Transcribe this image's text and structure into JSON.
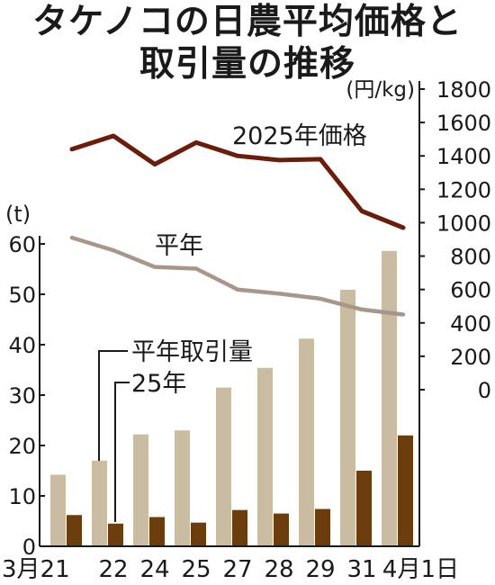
{
  "title_lines": [
    "タケノコの日農平均価格と",
    "取引量の推移"
  ],
  "chart_data": {
    "type": "bar+line",
    "categories": [
      "3月21",
      "22",
      "24",
      "25",
      "27",
      "28",
      "29",
      "31",
      "4月1日"
    ],
    "left_axis": {
      "unit": "(t)",
      "ticks": [
        0,
        10,
        20,
        30,
        40,
        50,
        60
      ],
      "range": [
        0,
        60
      ]
    },
    "right_axis": {
      "unit": "(円/kg)",
      "ticks": [
        0,
        200,
        400,
        600,
        800,
        1000,
        1200,
        1400,
        1600,
        1800
      ],
      "range": [
        0,
        1800
      ]
    },
    "bar_series": [
      {
        "name": "平年取引量",
        "color": "#c9bca3",
        "values": [
          14.2,
          17.0,
          22.2,
          23.0,
          31.5,
          35.4,
          41.2,
          50.9,
          58.6
        ]
      },
      {
        "name": "25年",
        "color": "#6b3d0c",
        "values": [
          6.2,
          4.5,
          5.8,
          4.7,
          7.2,
          6.5,
          7.4,
          15.0,
          22.0
        ]
      }
    ],
    "line_series": [
      {
        "name": "2025年価格",
        "color": "#6b1d0a",
        "values": [
          1440,
          1520,
          1350,
          1480,
          1400,
          1375,
          1380,
          1070,
          970
        ]
      },
      {
        "name": "平年",
        "color": "#a8968a",
        "values": [
          910,
          835,
          735,
          725,
          600,
          575,
          545,
          480,
          450
        ]
      }
    ]
  }
}
